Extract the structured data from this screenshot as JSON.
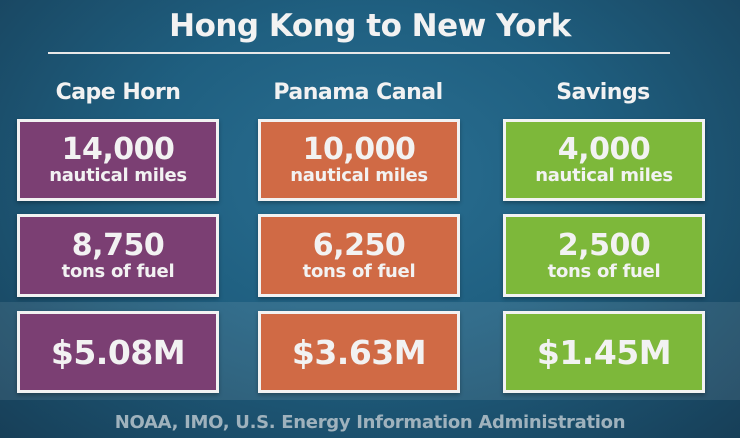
{
  "title": "Hong Kong to New York",
  "colors": {
    "cape_horn": "#7b3f73",
    "panama_canal": "#d06a45",
    "savings": "#7db83a",
    "background": "#1f5f80"
  },
  "columns": [
    {
      "header": "Cape Horn",
      "distance": "14,000",
      "distance_unit": "nautical miles",
      "fuel": "8,750",
      "fuel_unit": "tons of fuel",
      "cost": "$5.08M"
    },
    {
      "header": "Panama Canal",
      "distance": "10,000",
      "distance_unit": "nautical miles",
      "fuel": "6,250",
      "fuel_unit": "tons of fuel",
      "cost": "$3.63M"
    },
    {
      "header": "Savings",
      "distance": "4,000",
      "distance_unit": "nautical miles",
      "fuel": "2,500",
      "fuel_unit": "tons of fuel",
      "cost": "$1.45M"
    }
  ],
  "source": "NOAA, IMO, U.S. Energy Information Administration"
}
